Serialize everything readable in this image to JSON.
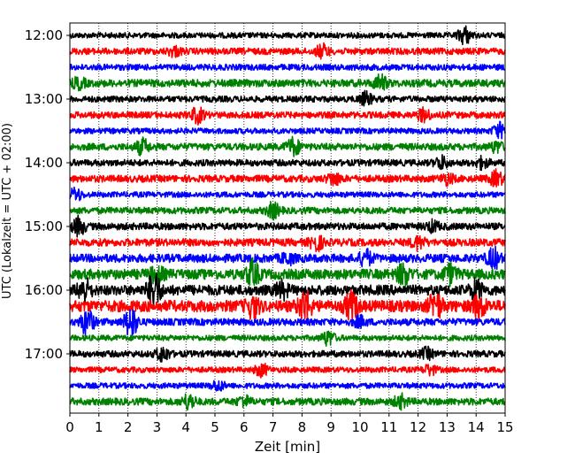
{
  "chart_data": {
    "type": "line",
    "title": "",
    "xlabel": "Zeit  [min]",
    "ylabel": "UTC (Lokalzeit = UTC + 02:00)",
    "xlim": [
      0,
      15
    ],
    "x_ticks": [
      "0",
      "1",
      "2",
      "3",
      "4",
      "5",
      "6",
      "7",
      "8",
      "9",
      "10",
      "11",
      "12",
      "13",
      "14",
      "15"
    ],
    "y_ticks": [
      "12:00",
      "13:00",
      "14:00",
      "15:00",
      "16:00",
      "17:00"
    ],
    "grid": "vertical-dotted",
    "colors": [
      "#000000",
      "#ff0000",
      "#0000ff",
      "#008000"
    ],
    "traces": [
      {
        "start": "12:00",
        "color": "#000000",
        "amplitude": 0.12,
        "events": [
          [
            13.6,
            0.35
          ]
        ]
      },
      {
        "start": "12:15",
        "color": "#ff0000",
        "amplitude": 0.14,
        "events": [
          [
            8.7,
            0.25
          ],
          [
            3.6,
            0.18
          ]
        ]
      },
      {
        "start": "12:30",
        "color": "#0000ff",
        "amplitude": 0.13,
        "events": []
      },
      {
        "start": "12:45",
        "color": "#008000",
        "amplitude": 0.16,
        "events": [
          [
            10.7,
            0.3
          ],
          [
            0.3,
            0.2
          ]
        ]
      },
      {
        "start": "13:00",
        "color": "#000000",
        "amplitude": 0.13,
        "events": [
          [
            10.2,
            0.25
          ]
        ]
      },
      {
        "start": "13:15",
        "color": "#ff0000",
        "amplitude": 0.14,
        "events": [
          [
            4.4,
            0.3
          ],
          [
            12.2,
            0.25
          ]
        ]
      },
      {
        "start": "13:30",
        "color": "#0000ff",
        "amplitude": 0.12,
        "events": [
          [
            14.8,
            0.3
          ]
        ]
      },
      {
        "start": "13:45",
        "color": "#008000",
        "amplitude": 0.15,
        "events": [
          [
            2.5,
            0.3
          ],
          [
            7.7,
            0.35
          ],
          [
            14.7,
            0.2
          ]
        ]
      },
      {
        "start": "14:00",
        "color": "#000000",
        "amplitude": 0.14,
        "events": [
          [
            12.8,
            0.25
          ],
          [
            14.2,
            0.2
          ]
        ]
      },
      {
        "start": "14:15",
        "color": "#ff0000",
        "amplitude": 0.15,
        "events": [
          [
            9.1,
            0.25
          ],
          [
            14.7,
            0.3
          ],
          [
            13.0,
            0.2
          ]
        ]
      },
      {
        "start": "14:30",
        "color": "#0000ff",
        "amplitude": 0.12,
        "events": [
          [
            0.2,
            0.25
          ]
        ]
      },
      {
        "start": "14:45",
        "color": "#008000",
        "amplitude": 0.14,
        "events": [
          [
            7.0,
            0.3
          ]
        ]
      },
      {
        "start": "15:00",
        "color": "#000000",
        "amplitude": 0.15,
        "events": [
          [
            0.3,
            0.35
          ],
          [
            12.5,
            0.2
          ]
        ]
      },
      {
        "start": "15:15",
        "color": "#ff0000",
        "amplitude": 0.16,
        "events": [
          [
            8.5,
            0.3
          ],
          [
            12.0,
            0.25
          ]
        ]
      },
      {
        "start": "15:30",
        "color": "#0000ff",
        "amplitude": 0.18,
        "events": [
          [
            10.2,
            0.3
          ],
          [
            14.6,
            0.4
          ],
          [
            7.5,
            0.2
          ]
        ]
      },
      {
        "start": "15:45",
        "color": "#008000",
        "amplitude": 0.22,
        "events": [
          [
            6.3,
            0.5
          ],
          [
            11.5,
            0.4
          ],
          [
            13.1,
            0.35
          ],
          [
            3.0,
            0.3
          ]
        ]
      },
      {
        "start": "16:00",
        "color": "#000000",
        "amplitude": 0.22,
        "events": [
          [
            2.9,
            0.75
          ],
          [
            0.5,
            0.45
          ],
          [
            7.3,
            0.3
          ],
          [
            14.0,
            0.35
          ]
        ]
      },
      {
        "start": "16:15",
        "color": "#ff0000",
        "amplitude": 0.25,
        "events": [
          [
            8.1,
            0.6
          ],
          [
            9.7,
            0.55
          ],
          [
            12.6,
            0.5
          ],
          [
            14.1,
            0.45
          ],
          [
            6.3,
            0.4
          ]
        ]
      },
      {
        "start": "16:30",
        "color": "#0000ff",
        "amplitude": 0.15,
        "events": [
          [
            2.1,
            0.65
          ],
          [
            0.6,
            0.55
          ],
          [
            10.0,
            0.2
          ]
        ]
      },
      {
        "start": "16:45",
        "color": "#008000",
        "amplitude": 0.12,
        "events": [
          [
            8.9,
            0.3
          ]
        ]
      },
      {
        "start": "17:00",
        "color": "#000000",
        "amplitude": 0.14,
        "events": [
          [
            3.2,
            0.3
          ],
          [
            12.3,
            0.2
          ]
        ]
      },
      {
        "start": "17:15",
        "color": "#ff0000",
        "amplitude": 0.12,
        "events": [
          [
            6.6,
            0.25
          ],
          [
            12.4,
            0.2
          ]
        ]
      },
      {
        "start": "17:30",
        "color": "#0000ff",
        "amplitude": 0.12,
        "events": [
          [
            5.1,
            0.2
          ]
        ]
      },
      {
        "start": "17:45",
        "color": "#008000",
        "amplitude": 0.15,
        "events": [
          [
            4.1,
            0.3
          ],
          [
            11.4,
            0.25
          ],
          [
            6.0,
            0.2
          ]
        ]
      }
    ]
  }
}
